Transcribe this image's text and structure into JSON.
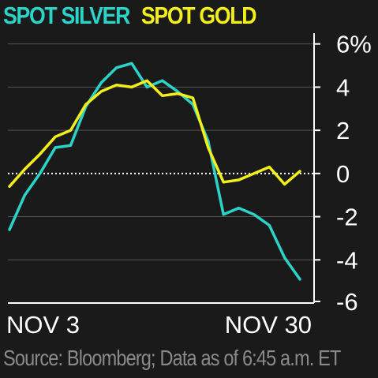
{
  "chart_data": {
    "type": "line",
    "legend": [
      "SPOT SILVER",
      "SPOT GOLD"
    ],
    "source": "Source: Bloomberg; Data as of 6:45 a.m. ET",
    "x_tick_labels": [
      "NOV 3",
      "NOV 30"
    ],
    "y_tick_labels": [
      "6%",
      "4",
      "2",
      "0",
      "-2",
      "-4",
      "-6"
    ],
    "y_ticks": [
      6,
      4,
      2,
      0,
      -2,
      -4,
      -6
    ],
    "ylim": [
      -6,
      6.5
    ],
    "ylabel": "",
    "xlabel": "",
    "grid": true,
    "zero_line": "dotted",
    "x": [
      "Nov 3",
      "Nov 4",
      "Nov 5",
      "Nov 6",
      "Nov 9",
      "Nov 10",
      "Nov 11",
      "Nov 12",
      "Nov 13",
      "Nov 16",
      "Nov 17",
      "Nov 18",
      "Nov 19",
      "Nov 20",
      "Nov 23",
      "Nov 24",
      "Nov 25",
      "Nov 26",
      "Nov 27",
      "Nov 30"
    ],
    "series": [
      {
        "name": "SPOT SILVER",
        "color": "#2cd3c9",
        "values": [
          -2.6,
          -1.0,
          0.0,
          1.2,
          1.3,
          3.1,
          4.2,
          4.9,
          5.1,
          4.0,
          4.3,
          3.8,
          3.2,
          1.5,
          -1.9,
          -1.6,
          -1.9,
          -2.4,
          -3.9,
          -4.9
        ]
      },
      {
        "name": "SPOT GOLD",
        "color": "#f4ee1a",
        "values": [
          -0.6,
          0.2,
          0.9,
          1.7,
          2.0,
          3.2,
          3.8,
          4.1,
          4.0,
          4.3,
          3.6,
          3.7,
          3.5,
          1.2,
          -0.4,
          -0.3,
          0.0,
          0.3,
          -0.5,
          0.1
        ]
      }
    ]
  }
}
